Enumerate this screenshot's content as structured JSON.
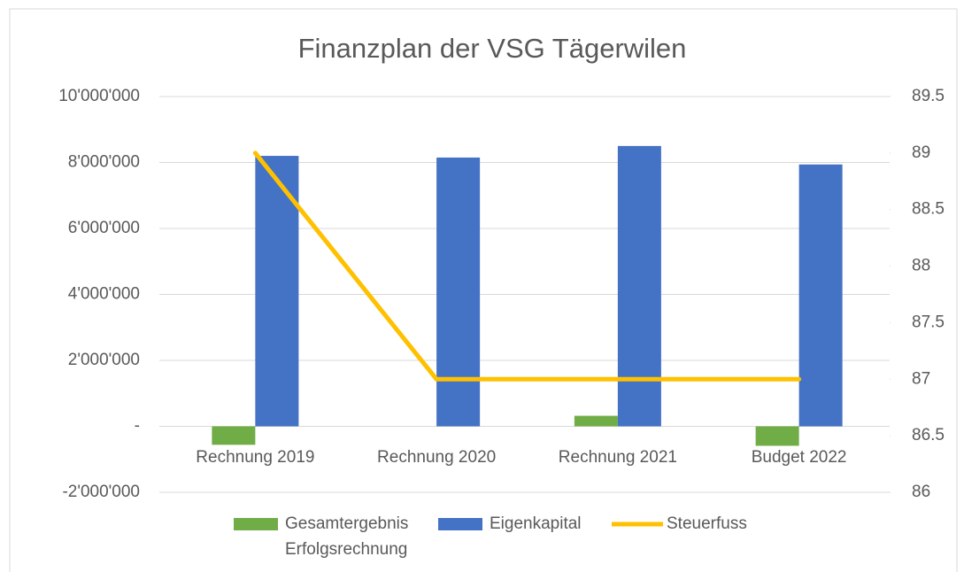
{
  "chart_data": {
    "type": "bar_line",
    "title": "Finanzplan der VSG Tägerwilen",
    "categories": [
      "Rechnung 2019",
      "Rechnung 2020",
      "Rechnung 2021",
      "Budget 2022"
    ],
    "series": [
      {
        "name": "Gesamtergebnis Erfolgsrechnung",
        "color": "#70ad47",
        "type": "bar",
        "values": [
          -560000,
          0,
          320000,
          -590000
        ]
      },
      {
        "name": "Eigenkapital",
        "color": "#4472c4",
        "type": "bar",
        "values": [
          8200000,
          8150000,
          8500000,
          7940000
        ]
      },
      {
        "name": "Steuerfuss",
        "color": "#ffc000",
        "type": "line",
        "axis": "y2",
        "values": [
          89,
          87,
          87,
          87
        ]
      }
    ],
    "ylim": [
      -2000000,
      10000000
    ],
    "yticks": [
      {
        "value": -2000000,
        "label": "-2'000'000"
      },
      {
        "value": 0,
        "label": "-"
      },
      {
        "value": 2000000,
        "label": "2'000'000"
      },
      {
        "value": 4000000,
        "label": "4'000'000"
      },
      {
        "value": 6000000,
        "label": "6'000'000"
      },
      {
        "value": 8000000,
        "label": "8'000'000"
      },
      {
        "value": 10000000,
        "label": "10'000'000"
      }
    ],
    "y2lim": [
      86,
      89.5
    ],
    "y2ticks": [
      86,
      86.5,
      87,
      87.5,
      88,
      88.5,
      89,
      89.5
    ],
    "grid": true,
    "legend": "bottom"
  }
}
